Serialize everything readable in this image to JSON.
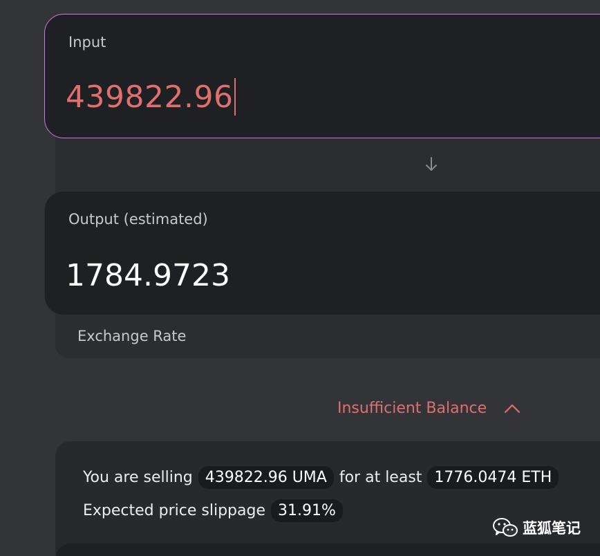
{
  "input": {
    "label": "Input",
    "value": "439822.96"
  },
  "output": {
    "label": "Output (estimated)",
    "value": "1784.9723"
  },
  "exchange_rate": {
    "label": "Exchange Rate"
  },
  "warning": {
    "text": "Insufficient Balance"
  },
  "summary": {
    "selling_prefix": "You are selling",
    "selling_amount": "439822.96 UMA",
    "min_prefix": "for at least",
    "min_amount": "1776.0474 ETH",
    "slippage_prefix": "Expected price slippage",
    "slippage_value": "31.91%"
  },
  "watermark": {
    "text": "蓝狐笔记",
    "icon": "wechat-icon"
  },
  "colors": {
    "accent_border": "#c77ddf",
    "error": "#e06f6f",
    "background": "#333437",
    "card": "#1f2023"
  }
}
